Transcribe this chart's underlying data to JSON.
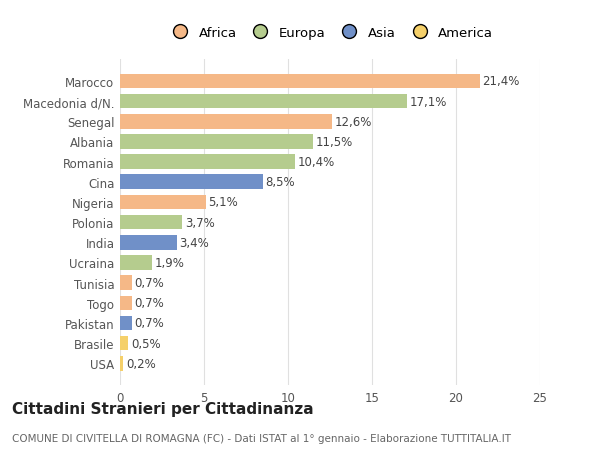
{
  "categories": [
    "USA",
    "Brasile",
    "Pakistan",
    "Togo",
    "Tunisia",
    "Ucraina",
    "India",
    "Polonia",
    "Nigeria",
    "Cina",
    "Romania",
    "Albania",
    "Senegal",
    "Macedonia d/N.",
    "Marocco"
  ],
  "values": [
    0.2,
    0.5,
    0.7,
    0.7,
    0.7,
    1.9,
    3.4,
    3.7,
    5.1,
    8.5,
    10.4,
    11.5,
    12.6,
    17.1,
    21.4
  ],
  "labels": [
    "0,2%",
    "0,5%",
    "0,7%",
    "0,7%",
    "0,7%",
    "1,9%",
    "3,4%",
    "3,7%",
    "5,1%",
    "8,5%",
    "10,4%",
    "11,5%",
    "12,6%",
    "17,1%",
    "21,4%"
  ],
  "continents": [
    "America",
    "America",
    "Asia",
    "Africa",
    "Africa",
    "Europa",
    "Asia",
    "Europa",
    "Africa",
    "Asia",
    "Europa",
    "Europa",
    "Africa",
    "Europa",
    "Africa"
  ],
  "colors": {
    "Africa": "#F5B887",
    "Europa": "#B5CC8E",
    "Asia": "#7090C8",
    "America": "#F5D06A"
  },
  "legend_order": [
    "Africa",
    "Europa",
    "Asia",
    "America"
  ],
  "title": "Cittadini Stranieri per Cittadinanza",
  "subtitle": "COMUNE DI CIVITELLA DI ROMAGNA (FC) - Dati ISTAT al 1° gennaio - Elaborazione TUTTITALIA.IT",
  "xlim": [
    0,
    25
  ],
  "xticks": [
    0,
    5,
    10,
    15,
    20,
    25
  ],
  "background_color": "#ffffff",
  "grid_color": "#e0e0e0",
  "bar_height": 0.72,
  "title_fontsize": 11,
  "subtitle_fontsize": 7.5,
  "label_fontsize": 8.5,
  "tick_fontsize": 8.5,
  "legend_fontsize": 9.5
}
